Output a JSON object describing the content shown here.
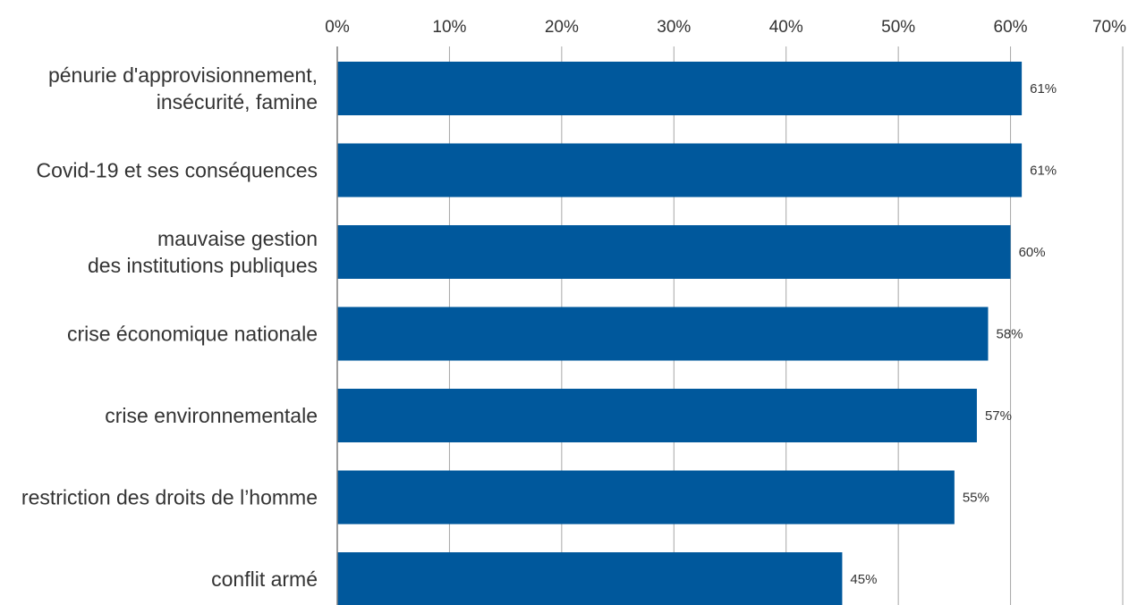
{
  "chart_data": {
    "type": "bar",
    "orientation": "horizontal",
    "categories": [
      [
        "pénurie d'approvisionnement,",
        "insécurité, famine"
      ],
      [
        "Covid-19 et ses conséquences"
      ],
      [
        "mauvaise gestion",
        "des institutions publiques"
      ],
      [
        "crise économique nationale"
      ],
      [
        "crise environnementale"
      ],
      [
        "restriction des droits de l’homme"
      ],
      [
        "conflit armé"
      ]
    ],
    "values": [
      61,
      61,
      60,
      58,
      57,
      55,
      45
    ],
    "value_labels": [
      "61%",
      "61%",
      "60%",
      "58%",
      "57%",
      "55%",
      "45%"
    ],
    "x_ticks": [
      "0%",
      "10%",
      "20%",
      "30%",
      "40%",
      "50%",
      "60%",
      "70%"
    ],
    "xlim": [
      0,
      70
    ],
    "x_axis_position": "top",
    "grid": true,
    "title": "",
    "xlabel": "",
    "ylabel": ""
  },
  "colors": {
    "bar": "#00589c",
    "grid": "#a6a6a6",
    "axis": "#7f7f7f",
    "text": "#333333"
  }
}
